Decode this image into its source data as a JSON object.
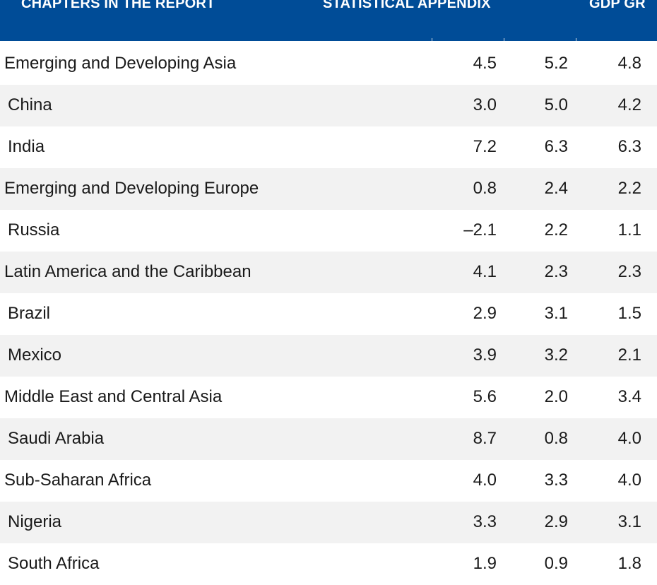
{
  "nav": {
    "items": [
      {
        "label": "CHAPTERS IN THE REPORT"
      },
      {
        "label": "STATISTICAL APPENDIX"
      },
      {
        "label": "GDP GR"
      }
    ]
  },
  "colors": {
    "nav_bg": "#004c97",
    "row_shade": "#f2f2f2",
    "text": "#1a1a1a"
  },
  "table": {
    "rows": [
      {
        "label": "Emerging and Developing Asia",
        "v1": "4.5",
        "v2": "5.2",
        "v3": "4.8"
      },
      {
        "label": "China",
        "v1": "3.0",
        "v2": "5.0",
        "v3": "4.2"
      },
      {
        "label": "India",
        "v1": "7.2",
        "v2": "6.3",
        "v3": "6.3"
      },
      {
        "label": "Emerging and Developing Europe",
        "v1": "0.8",
        "v2": "2.4",
        "v3": "2.2"
      },
      {
        "label": "Russia",
        "v1": "–2.1",
        "v2": "2.2",
        "v3": "1.1"
      },
      {
        "label": "Latin America and the Caribbean",
        "v1": "4.1",
        "v2": "2.3",
        "v3": "2.3"
      },
      {
        "label": "Brazil",
        "v1": "2.9",
        "v2": "3.1",
        "v3": "1.5"
      },
      {
        "label": "Mexico",
        "v1": "3.9",
        "v2": "3.2",
        "v3": "2.1"
      },
      {
        "label": "Middle East and Central Asia",
        "v1": "5.6",
        "v2": "2.0",
        "v3": "3.4"
      },
      {
        "label": "Saudi Arabia",
        "v1": "8.7",
        "v2": "0.8",
        "v3": "4.0"
      },
      {
        "label": "Sub-Saharan Africa",
        "v1": "4.0",
        "v2": "3.3",
        "v3": "4.0"
      },
      {
        "label": "Nigeria",
        "v1": "3.3",
        "v2": "2.9",
        "v3": "3.1"
      },
      {
        "label": "South Africa",
        "v1": "1.9",
        "v2": "0.9",
        "v3": "1.8"
      }
    ]
  }
}
